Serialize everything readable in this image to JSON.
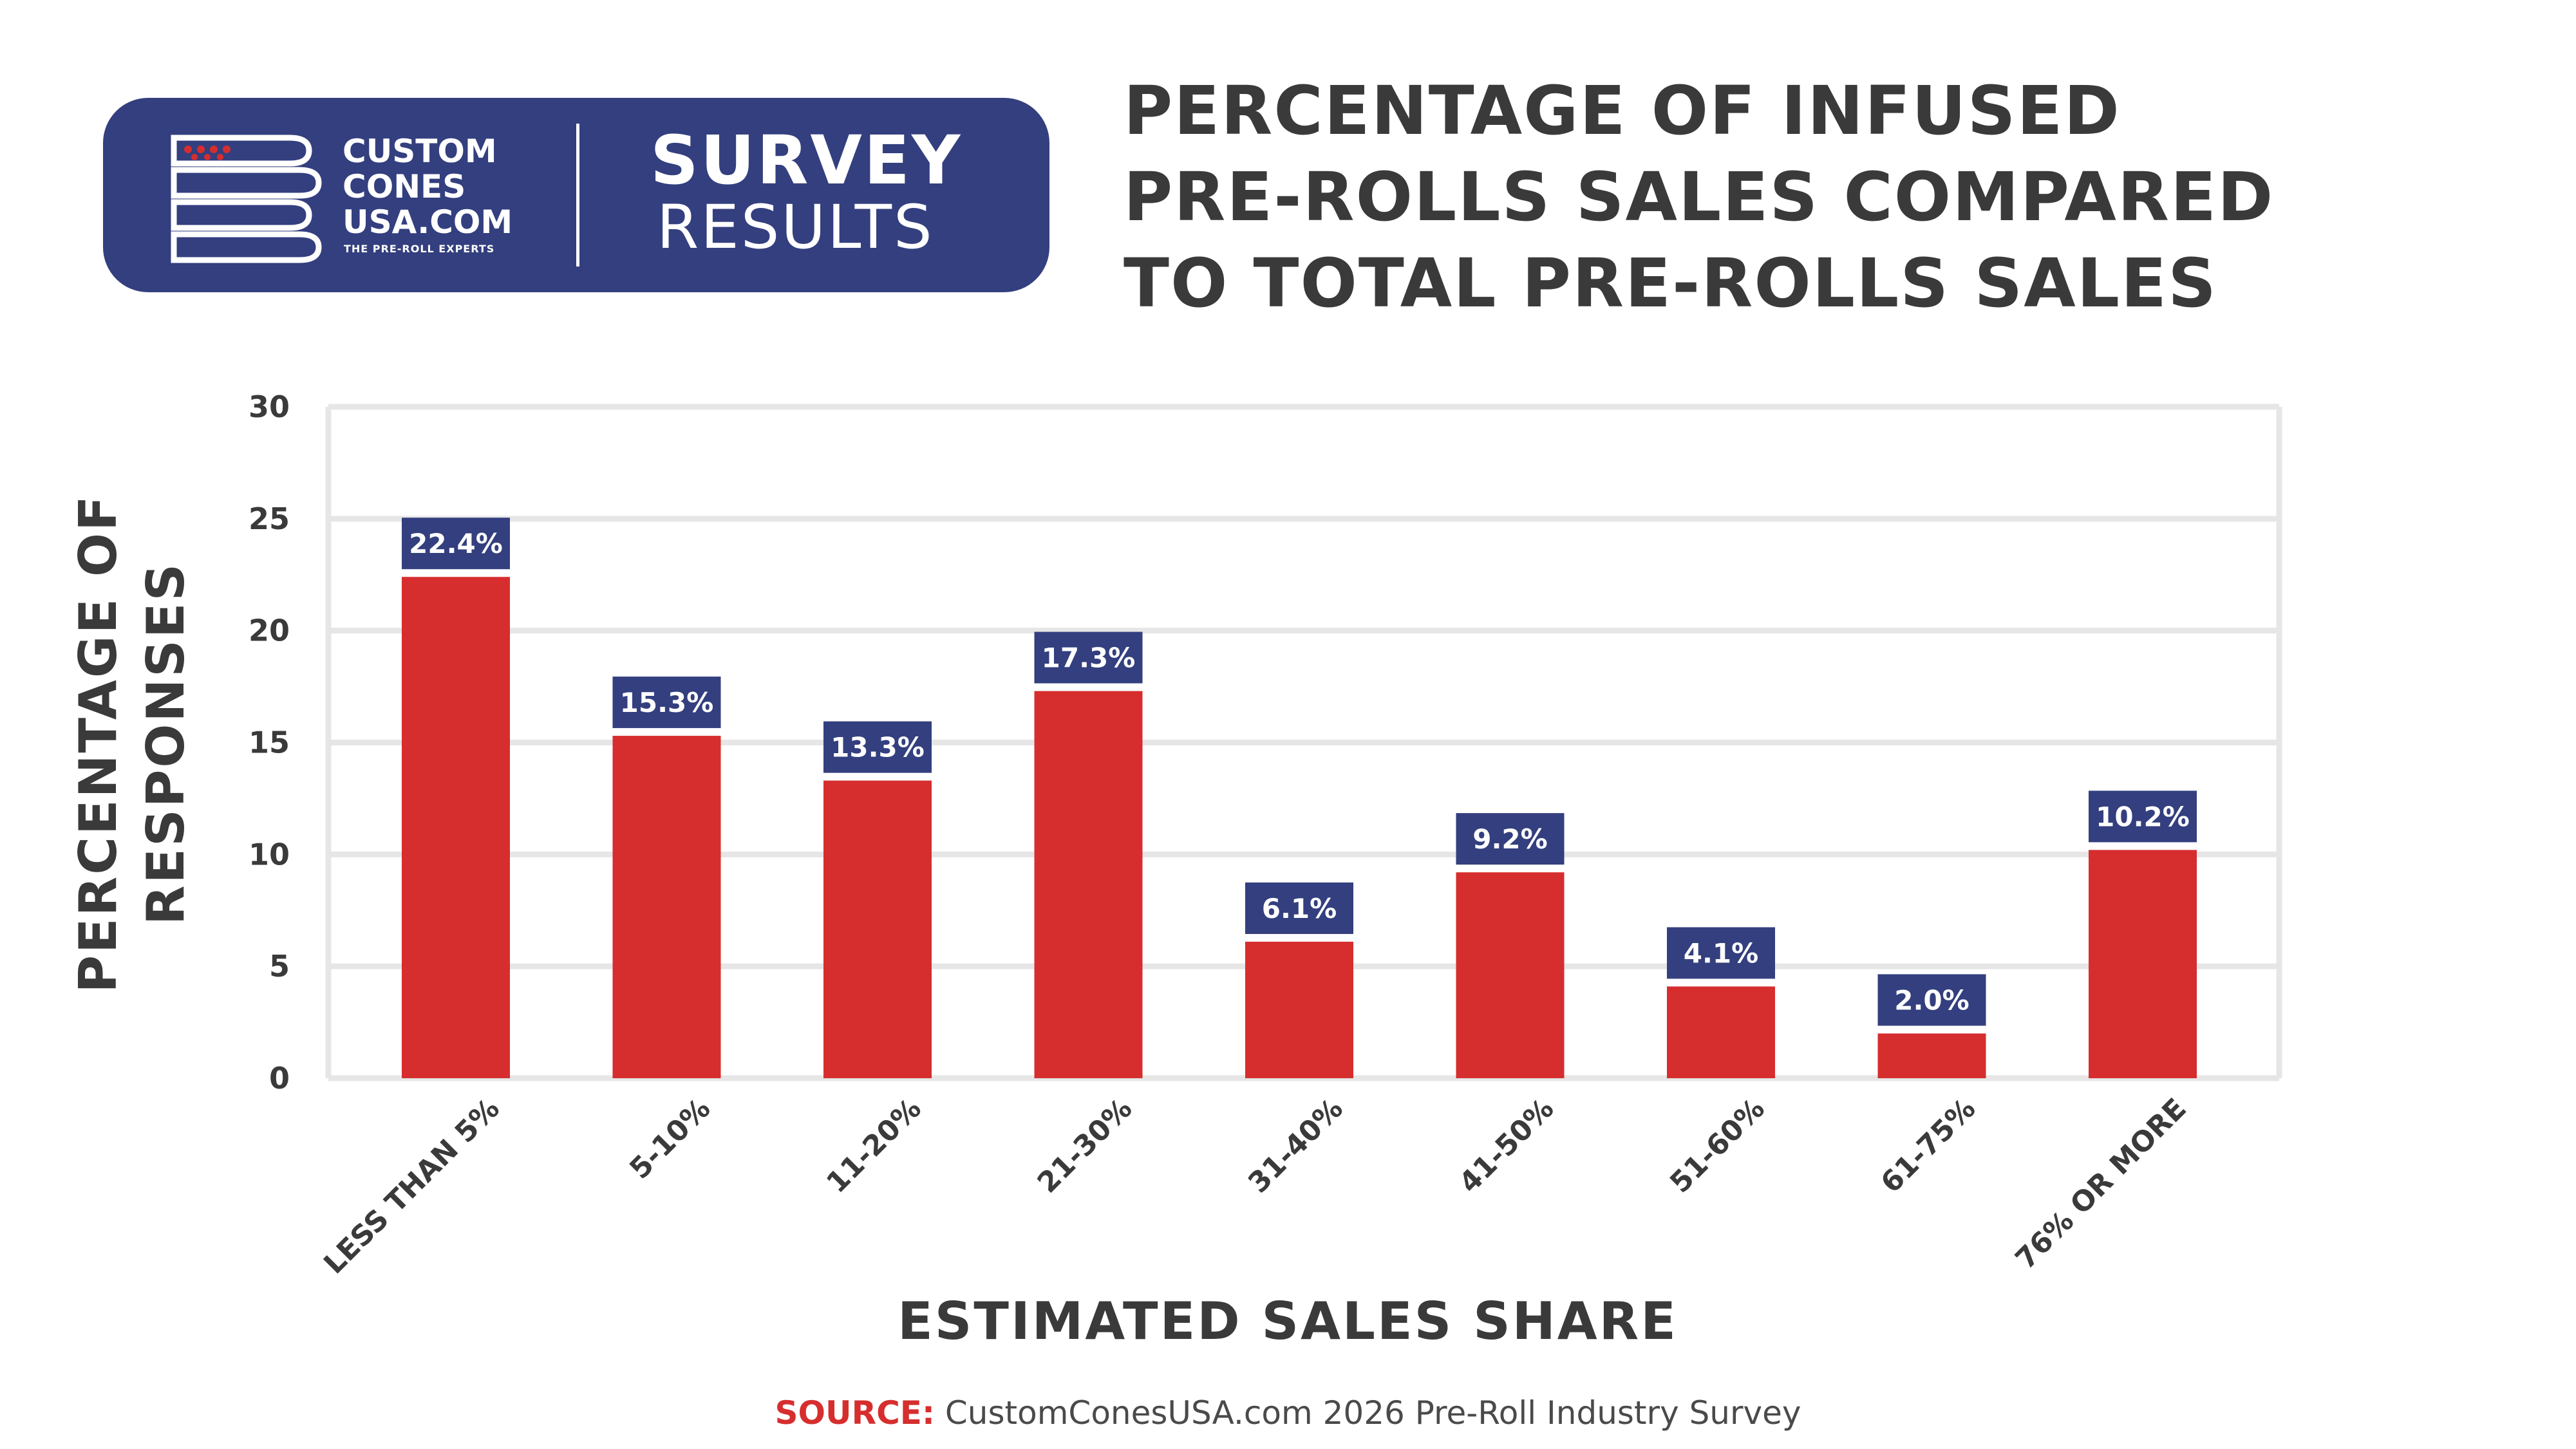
{
  "brand": {
    "name_line1": "CUSTOM",
    "name_line2": "CONES",
    "name_line3": "USA.COM",
    "tagline": "THE PRE-ROLL EXPERTS",
    "survey_word": "SURVEY",
    "results_word": "RESULTS",
    "logo_icon": "flag-rolls-icon"
  },
  "title": {
    "line1": "PERCENTAGE OF INFUSED",
    "line2": "PRE-ROLLS SALES COMPARED",
    "line3": "TO TOTAL PRE-ROLLS SALES"
  },
  "source": {
    "label": "SOURCE:",
    "text": "CustomConesUSA.com 2026 Pre-Roll Industry Survey"
  },
  "colors": {
    "navy": "#333f7e",
    "bar": "#d62e2e",
    "title_text": "#3a3a3a",
    "grid": "#e6e6e6",
    "source_red": "#d62e2e",
    "source_text": "#4a4a4a"
  },
  "chart_data": {
    "type": "bar",
    "title": "PERCENTAGE OF INFUSED PRE-ROLLS SALES COMPARED TO TOTAL PRE-ROLLS SALES",
    "xlabel": "ESTIMATED SALES SHARE",
    "ylabel_line1": "PERCENTAGE OF",
    "ylabel_line2": "RESPONSES",
    "ylim": [
      0,
      30
    ],
    "yticks": [
      0,
      5,
      10,
      15,
      20,
      25,
      30
    ],
    "grid": true,
    "categories": [
      "LESS THAN 5%",
      "5-10%",
      "11-20%",
      "21-30%",
      "31-40%",
      "41-50%",
      "51-60%",
      "61-75%",
      "76% OR MORE"
    ],
    "values": [
      22.4,
      15.3,
      13.3,
      17.3,
      6.1,
      9.2,
      4.1,
      2.0,
      10.2
    ],
    "data_labels": [
      "22.4%",
      "15.3%",
      "13.3%",
      "17.3%",
      "6.1%",
      "9.2%",
      "4.1%",
      "2.0%",
      "10.2%"
    ]
  }
}
